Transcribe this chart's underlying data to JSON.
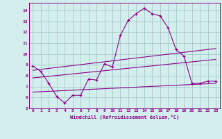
{
  "xlabel": "Windchill (Refroidissement éolien,°C)",
  "background_color": "#d4eeed",
  "grid_color": "#aacece",
  "line_color": "#880088",
  "xlim": [
    -0.5,
    23.5
  ],
  "ylim": [
    5,
    14.7
  ],
  "xticks": [
    0,
    1,
    2,
    3,
    4,
    5,
    6,
    7,
    8,
    9,
    10,
    11,
    12,
    13,
    14,
    15,
    16,
    17,
    18,
    19,
    20,
    21,
    22,
    23
  ],
  "yticks": [
    5,
    6,
    7,
    8,
    9,
    10,
    11,
    12,
    13,
    14
  ],
  "curve1_x": [
    0,
    1,
    2,
    3,
    4,
    5,
    6,
    7,
    8,
    9,
    10,
    11,
    12,
    13,
    14,
    15,
    16,
    17,
    18,
    19,
    20,
    21,
    22,
    23
  ],
  "curve1_y": [
    8.9,
    8.4,
    7.3,
    6.1,
    5.5,
    6.2,
    6.2,
    7.7,
    7.6,
    9.1,
    8.8,
    11.7,
    13.1,
    13.7,
    14.2,
    13.7,
    13.5,
    12.4,
    10.4,
    9.8,
    7.3,
    7.3,
    7.5,
    7.5
  ],
  "line2_x": [
    0,
    23
  ],
  "line2_y": [
    8.5,
    10.5
  ],
  "line3_x": [
    0,
    23
  ],
  "line3_y": [
    7.8,
    9.5
  ],
  "line4_x": [
    0,
    23
  ],
  "line4_y": [
    6.5,
    7.3
  ]
}
